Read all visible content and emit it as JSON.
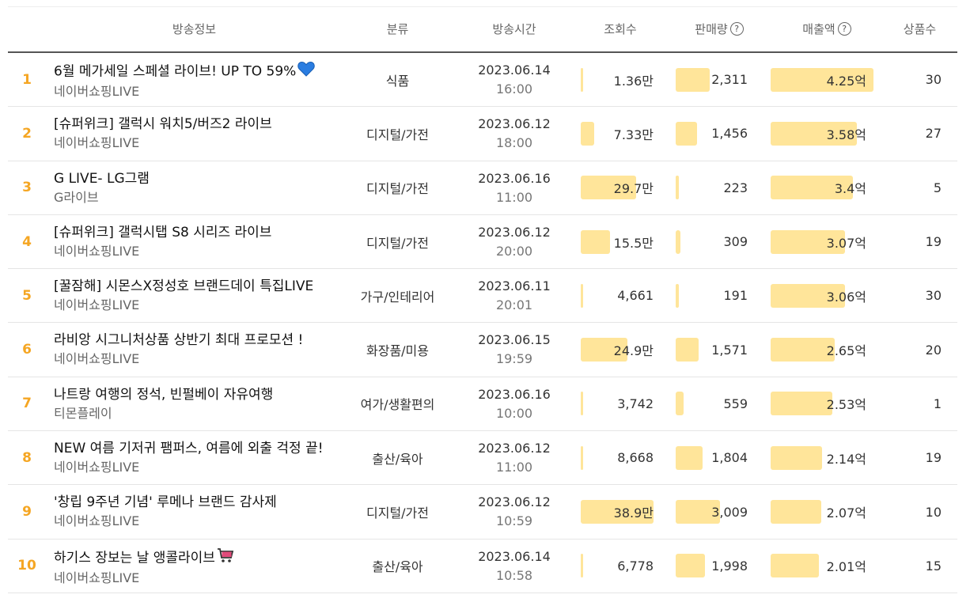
{
  "headers": {
    "info": "방송정보",
    "category": "분류",
    "time": "방송시간",
    "views": "조회수",
    "sales": "판매량",
    "revenue": "매출액",
    "products": "상품수"
  },
  "colors": {
    "rank": "#f5a623",
    "bar": "#ffe59a"
  },
  "rows": [
    {
      "rank": "1",
      "title": "6월 메가세일 스페셜 라이브! UP TO 59%",
      "emoji": "heart-icon",
      "channel": "네이버쇼핑LIVE",
      "category": "식품",
      "date": "2023.06.14",
      "time": "16:00",
      "views": "1.36만",
      "views_ratio": 0.035,
      "sales": "2,311",
      "sales_ratio": 0.77,
      "revenue": "4.25억",
      "revenue_ratio": 1.0,
      "products": "30"
    },
    {
      "rank": "2",
      "title": "[슈퍼위크] 갤럭시 워치5/버즈2 라이브",
      "emoji": "",
      "channel": "네이버쇼핑LIVE",
      "category": "디지털/가전",
      "date": "2023.06.12",
      "time": "18:00",
      "views": "7.33만",
      "views_ratio": 0.19,
      "sales": "1,456",
      "sales_ratio": 0.48,
      "revenue": "3.58억",
      "revenue_ratio": 0.84,
      "products": "27"
    },
    {
      "rank": "3",
      "title": "G LIVE- LG그램",
      "emoji": "",
      "channel": "G라이브",
      "category": "디지털/가전",
      "date": "2023.06.16",
      "time": "11:00",
      "views": "29.7만",
      "views_ratio": 0.76,
      "sales": "223",
      "sales_ratio": 0.074,
      "revenue": "3.4억",
      "revenue_ratio": 0.8,
      "products": "5"
    },
    {
      "rank": "4",
      "title": "[슈퍼위크] 갤럭시탭 S8 시리즈 라이브",
      "emoji": "",
      "channel": "네이버쇼핑LIVE",
      "category": "디지털/가전",
      "date": "2023.06.12",
      "time": "20:00",
      "views": "15.5만",
      "views_ratio": 0.4,
      "sales": "309",
      "sales_ratio": 0.1,
      "revenue": "3.07억",
      "revenue_ratio": 0.72,
      "products": "19"
    },
    {
      "rank": "5",
      "title": "[꿀잠해] 시몬스X정성호 브랜드데이 특집LIVE",
      "emoji": "",
      "channel": "네이버쇼핑LIVE",
      "category": "가구/인테리어",
      "date": "2023.06.11",
      "time": "20:01",
      "views": "4,661",
      "views_ratio": 0.012,
      "sales": "191",
      "sales_ratio": 0.063,
      "revenue": "3.06억",
      "revenue_ratio": 0.72,
      "products": "30"
    },
    {
      "rank": "6",
      "title": "라비앙 시그니처상품 상반기 최대 프로모션 !",
      "emoji": "",
      "channel": "네이버쇼핑LIVE",
      "category": "화장품/미용",
      "date": "2023.06.15",
      "time": "19:59",
      "views": "24.9만",
      "views_ratio": 0.64,
      "sales": "1,571",
      "sales_ratio": 0.52,
      "revenue": "2.65억",
      "revenue_ratio": 0.62,
      "products": "20"
    },
    {
      "rank": "7",
      "title": "나트랑 여행의 정석, 빈펄베이 자유여행",
      "emoji": "",
      "channel": "티몬플레이",
      "category": "여가/생활편의",
      "date": "2023.06.16",
      "time": "10:00",
      "views": "3,742",
      "views_ratio": 0.01,
      "sales": "559",
      "sales_ratio": 0.186,
      "revenue": "2.53억",
      "revenue_ratio": 0.6,
      "products": "1"
    },
    {
      "rank": "8",
      "title": "NEW 여름 기저귀 팸퍼스, 여름에 외출 걱정 끝!",
      "emoji": "",
      "channel": "네이버쇼핑LIVE",
      "category": "출산/육아",
      "date": "2023.06.12",
      "time": "11:00",
      "views": "8,668",
      "views_ratio": 0.022,
      "sales": "1,804",
      "sales_ratio": 0.6,
      "revenue": "2.14억",
      "revenue_ratio": 0.5,
      "products": "19"
    },
    {
      "rank": "9",
      "title": "'창립 9주년 기념' 루메나 브랜드 감사제",
      "emoji": "",
      "channel": "네이버쇼핑LIVE",
      "category": "디지털/가전",
      "date": "2023.06.12",
      "time": "10:59",
      "views": "38.9만",
      "views_ratio": 1.0,
      "sales": "3,009",
      "sales_ratio": 1.0,
      "revenue": "2.07억",
      "revenue_ratio": 0.49,
      "products": "10"
    },
    {
      "rank": "10",
      "title": "하기스 장보는 날 앵콜라이브",
      "emoji": "cart-icon",
      "channel": "네이버쇼핑LIVE",
      "category": "출산/육아",
      "date": "2023.06.14",
      "time": "10:58",
      "views": "6,778",
      "views_ratio": 0.017,
      "sales": "1,998",
      "sales_ratio": 0.66,
      "revenue": "2.01억",
      "revenue_ratio": 0.47,
      "products": "15"
    }
  ]
}
